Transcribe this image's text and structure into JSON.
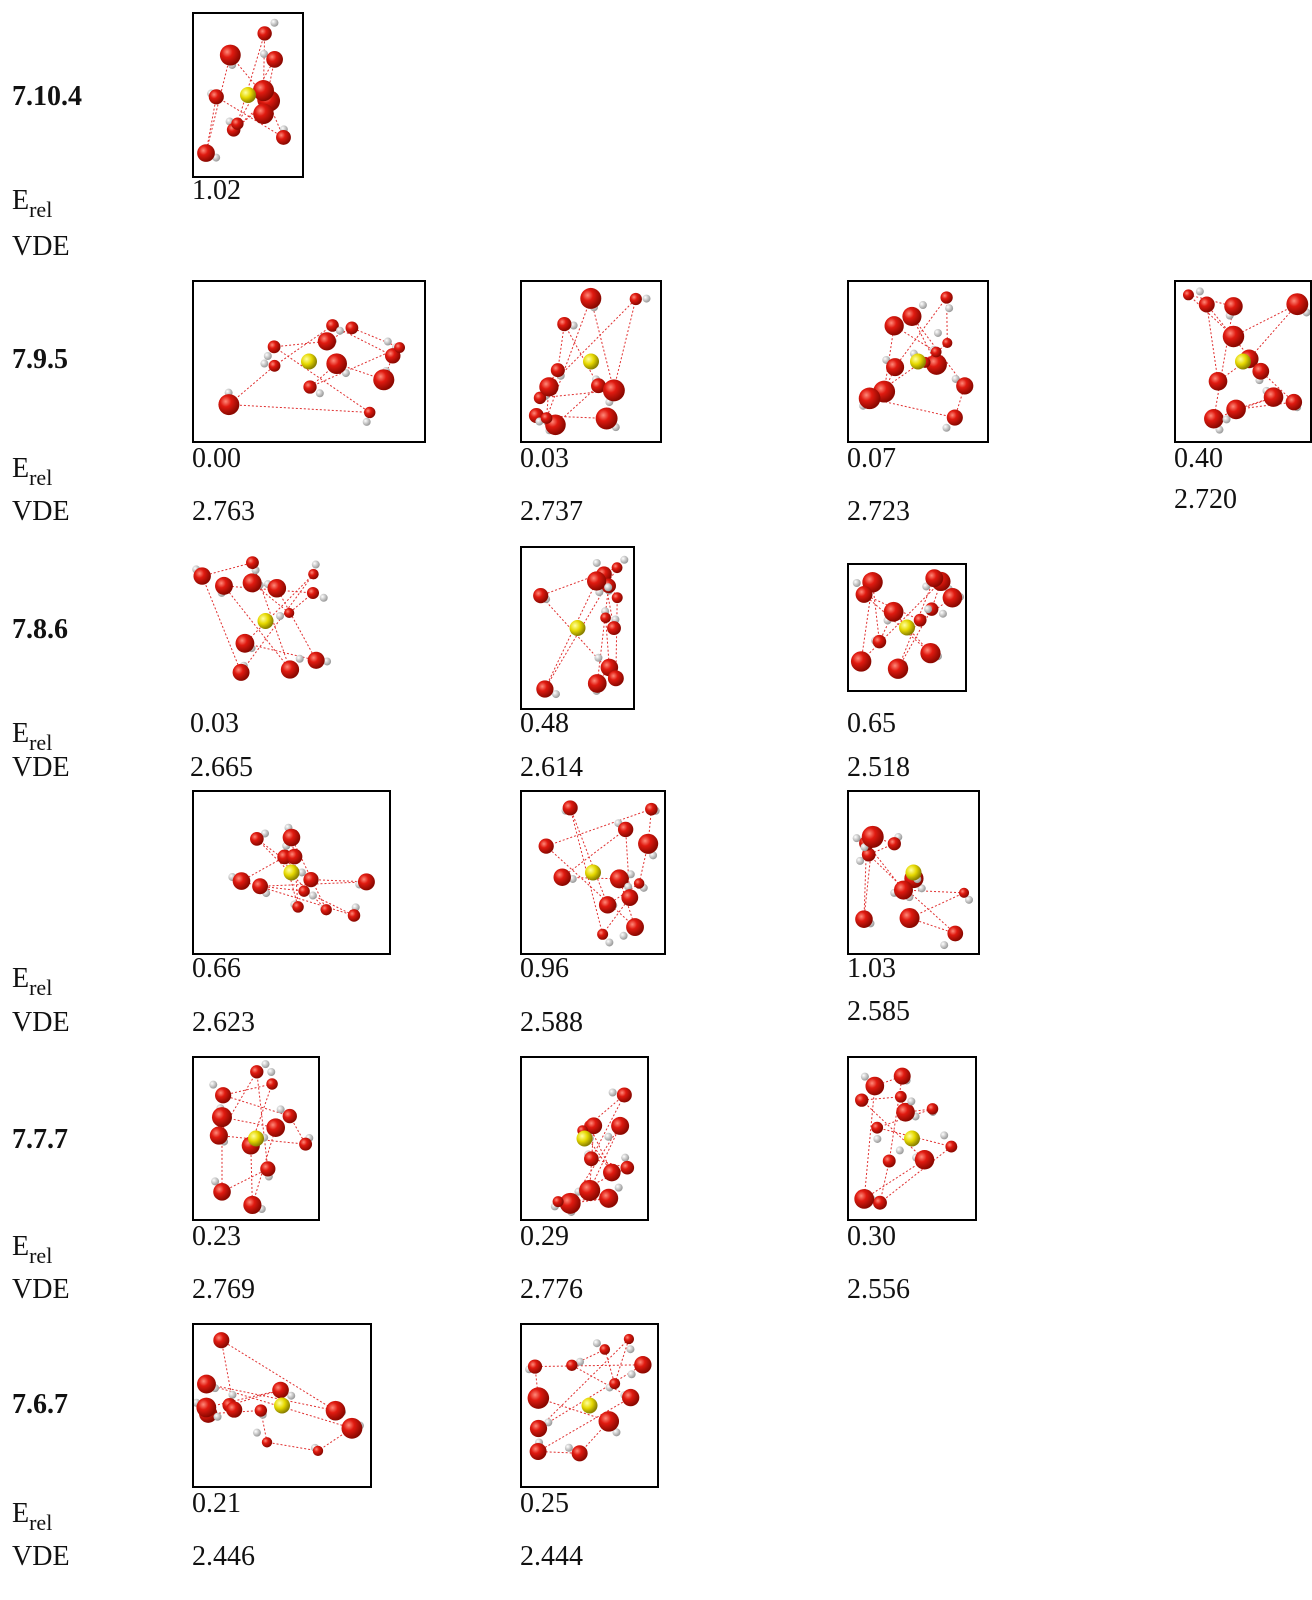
{
  "e_label": {
    "main": "E",
    "sub": "rel"
  },
  "vde_label": "VDE",
  "rows": [
    {
      "label": "7.10.4",
      "structures": [
        {
          "energy": "1.02"
        }
      ]
    },
    {
      "label": "7.9.5",
      "structures": [
        {
          "energy": "0.00",
          "vde": "2.763"
        },
        {
          "energy": "0.03",
          "vde": "2.737"
        },
        {
          "energy": "0.07",
          "vde": "2.723"
        },
        {
          "energy": "0.40",
          "vde": "2.720"
        }
      ]
    },
    {
      "label": "7.8.6",
      "structures": [
        {
          "energy": "0.03",
          "vde": "2.665"
        },
        {
          "energy": "0.48",
          "vde": "2.614"
        },
        {
          "energy": "0.65",
          "vde": "2.518"
        }
      ]
    },
    {
      "structures": [
        {
          "energy": "0.66",
          "vde": "2.623"
        },
        {
          "energy": "0.96",
          "vde": "2.588"
        },
        {
          "energy": "1.03",
          "vde": "2.585"
        }
      ]
    },
    {
      "label": "7.7.7",
      "structures": [
        {
          "energy": "0.23",
          "vde": "2.769"
        },
        {
          "energy": "0.29",
          "vde": "2.776"
        },
        {
          "energy": "0.30",
          "vde": "2.556"
        }
      ]
    },
    {
      "label": "7.6.7",
      "structures": [
        {
          "energy": "0.21",
          "vde": "2.446"
        },
        {
          "energy": "0.25",
          "vde": "2.444"
        }
      ]
    }
  ]
}
